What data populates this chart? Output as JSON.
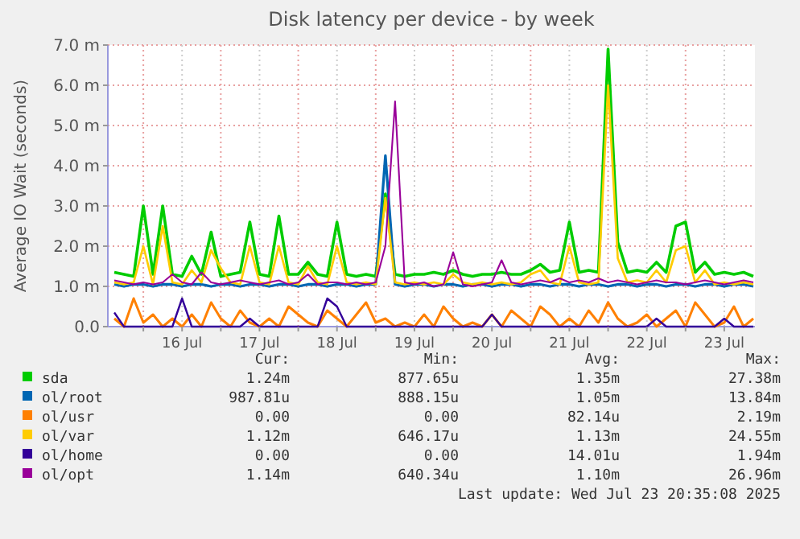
{
  "chart_data": {
    "type": "line",
    "title": "Disk latency per device - by week",
    "ylabel": "Average IO Wait (seconds)",
    "x": [
      "2025-07-15T15:00",
      "2025-07-15T18:00",
      "2025-07-15T21:00",
      "2025-07-16T00:00",
      "2025-07-16T03:00",
      "2025-07-16T06:00",
      "2025-07-16T09:00",
      "2025-07-16T12:00",
      "2025-07-16T15:00",
      "2025-07-16T18:00",
      "2025-07-16T21:00",
      "2025-07-17T00:00",
      "2025-07-17T03:00",
      "2025-07-17T06:00",
      "2025-07-17T09:00",
      "2025-07-17T12:00",
      "2025-07-17T15:00",
      "2025-07-17T18:00",
      "2025-07-17T21:00",
      "2025-07-18T00:00",
      "2025-07-18T03:00",
      "2025-07-18T06:00",
      "2025-07-18T09:00",
      "2025-07-18T12:00",
      "2025-07-18T15:00",
      "2025-07-18T18:00",
      "2025-07-18T21:00",
      "2025-07-19T00:00",
      "2025-07-19T03:00",
      "2025-07-19T06:00",
      "2025-07-19T09:00",
      "2025-07-19T12:00",
      "2025-07-19T15:00",
      "2025-07-19T18:00",
      "2025-07-19T21:00",
      "2025-07-20T00:00",
      "2025-07-20T03:00",
      "2025-07-20T06:00",
      "2025-07-20T09:00",
      "2025-07-20T12:00",
      "2025-07-20T15:00",
      "2025-07-20T18:00",
      "2025-07-20T21:00",
      "2025-07-21T00:00",
      "2025-07-21T03:00",
      "2025-07-21T06:00",
      "2025-07-21T09:00",
      "2025-07-21T12:00",
      "2025-07-21T15:00",
      "2025-07-21T18:00",
      "2025-07-21T21:00",
      "2025-07-22T00:00",
      "2025-07-22T03:00",
      "2025-07-22T06:00",
      "2025-07-22T09:00",
      "2025-07-22T12:00",
      "2025-07-22T15:00",
      "2025-07-22T18:00",
      "2025-07-22T21:00",
      "2025-07-23T00:00",
      "2025-07-23T03:00",
      "2025-07-23T06:00",
      "2025-07-23T09:00",
      "2025-07-23T12:00",
      "2025-07-23T15:00",
      "2025-07-23T18:00",
      "2025-07-23T21:00"
    ],
    "series": [
      {
        "name": "sda",
        "color": "#00cc00",
        "values": [
          1.35,
          1.3,
          1.25,
          3.0,
          1.3,
          3.0,
          1.3,
          1.25,
          1.75,
          1.3,
          2.35,
          1.25,
          1.3,
          1.35,
          2.6,
          1.3,
          1.25,
          2.75,
          1.3,
          1.3,
          1.6,
          1.3,
          1.25,
          2.6,
          1.3,
          1.25,
          1.3,
          1.25,
          3.3,
          1.3,
          1.25,
          1.3,
          1.3,
          1.35,
          1.3,
          1.4,
          1.3,
          1.25,
          1.3,
          1.3,
          1.35,
          1.3,
          1.3,
          1.4,
          1.55,
          1.35,
          1.4,
          2.6,
          1.35,
          1.4,
          1.35,
          6.9,
          2.1,
          1.35,
          1.4,
          1.35,
          1.6,
          1.35,
          2.5,
          2.6,
          1.35,
          1.6,
          1.3,
          1.35,
          1.3,
          1.35,
          1.25
        ]
      },
      {
        "name": "ol/root",
        "color": "#0066b3",
        "values": [
          1.05,
          1.0,
          1.05,
          1.05,
          1.0,
          1.05,
          1.05,
          1.0,
          1.05,
          1.05,
          1.0,
          1.05,
          1.05,
          1.0,
          1.05,
          1.05,
          1.0,
          1.05,
          1.05,
          1.0,
          1.05,
          1.05,
          1.0,
          1.05,
          1.05,
          1.0,
          1.05,
          1.05,
          4.25,
          1.05,
          1.0,
          1.05,
          1.05,
          1.0,
          1.05,
          1.05,
          1.0,
          1.05,
          1.05,
          1.0,
          1.05,
          1.05,
          1.0,
          1.05,
          1.05,
          1.0,
          1.05,
          1.05,
          1.0,
          1.05,
          1.05,
          1.0,
          1.05,
          1.05,
          1.0,
          1.05,
          1.05,
          1.0,
          1.05,
          1.05,
          1.0,
          1.05,
          1.05,
          1.0,
          1.05,
          1.05,
          1.0
        ]
      },
      {
        "name": "ol/usr",
        "color": "#ff8000",
        "values": [
          0.2,
          0.0,
          0.7,
          0.1,
          0.3,
          0.0,
          0.2,
          0.0,
          0.3,
          0.0,
          0.6,
          0.2,
          0.0,
          0.4,
          0.1,
          0.0,
          0.2,
          0.0,
          0.5,
          0.3,
          0.1,
          0.0,
          0.4,
          0.2,
          0.0,
          0.3,
          0.6,
          0.1,
          0.2,
          0.0,
          0.1,
          0.0,
          0.3,
          0.0,
          0.5,
          0.2,
          0.0,
          0.1,
          0.0,
          0.3,
          0.0,
          0.4,
          0.2,
          0.0,
          0.5,
          0.3,
          0.0,
          0.2,
          0.0,
          0.4,
          0.1,
          0.6,
          0.2,
          0.0,
          0.1,
          0.3,
          0.0,
          0.2,
          0.4,
          0.0,
          0.6,
          0.3,
          0.0,
          0.1,
          0.5,
          0.0,
          0.2
        ]
      },
      {
        "name": "ol/var",
        "color": "#ffcc00",
        "values": [
          1.1,
          1.05,
          1.1,
          2.0,
          1.05,
          2.5,
          1.1,
          1.05,
          1.4,
          1.1,
          1.9,
          1.45,
          1.1,
          1.05,
          2.0,
          1.1,
          1.05,
          2.0,
          1.1,
          1.05,
          1.5,
          1.1,
          1.05,
          2.0,
          1.1,
          1.05,
          1.1,
          1.05,
          3.2,
          1.1,
          1.05,
          1.1,
          1.05,
          1.1,
          1.05,
          1.3,
          1.1,
          1.05,
          1.1,
          1.05,
          1.1,
          1.05,
          1.1,
          1.3,
          1.4,
          1.1,
          1.05,
          2.0,
          1.1,
          1.05,
          1.1,
          6.0,
          1.7,
          1.1,
          1.15,
          1.1,
          1.4,
          1.1,
          1.9,
          2.0,
          1.1,
          1.4,
          1.05,
          1.1,
          1.05,
          1.1,
          1.05
        ]
      },
      {
        "name": "ol/home",
        "color": "#330099",
        "values": [
          0.35,
          0.0,
          0.0,
          0.0,
          0.0,
          0.0,
          0.0,
          0.7,
          0.0,
          0.0,
          0.0,
          0.0,
          0.0,
          0.0,
          0.2,
          0.0,
          0.0,
          0.0,
          0.0,
          0.0,
          0.0,
          0.0,
          0.7,
          0.5,
          0.0,
          0.0,
          0.0,
          0.0,
          0.0,
          0.0,
          0.0,
          0.0,
          0.0,
          0.0,
          0.0,
          0.0,
          0.0,
          0.0,
          0.0,
          0.3,
          0.0,
          0.0,
          0.0,
          0.0,
          0.0,
          0.0,
          0.0,
          0.0,
          0.0,
          0.0,
          0.0,
          0.0,
          0.0,
          0.0,
          0.0,
          0.0,
          0.2,
          0.0,
          0.0,
          0.0,
          0.0,
          0.0,
          0.0,
          0.2,
          0.0,
          0.0,
          0.0
        ]
      },
      {
        "name": "ol/opt",
        "color": "#990099",
        "values": [
          1.15,
          1.1,
          1.05,
          1.1,
          1.05,
          1.1,
          1.3,
          1.1,
          1.05,
          1.35,
          1.1,
          1.05,
          1.1,
          1.15,
          1.1,
          1.05,
          1.1,
          1.15,
          1.05,
          1.1,
          1.3,
          1.05,
          1.1,
          1.1,
          1.05,
          1.1,
          1.05,
          1.1,
          2.0,
          5.6,
          1.1,
          1.05,
          1.1,
          1.0,
          1.05,
          1.85,
          1.05,
          1.0,
          1.05,
          1.1,
          1.65,
          1.1,
          1.05,
          1.1,
          1.15,
          1.1,
          1.2,
          1.1,
          1.15,
          1.1,
          1.2,
          1.1,
          1.15,
          1.1,
          1.05,
          1.1,
          1.15,
          1.1,
          1.1,
          1.05,
          1.1,
          1.15,
          1.1,
          1.05,
          1.1,
          1.15,
          1.1
        ]
      }
    ],
    "xlim": [
      "2025-07-15T13:00",
      "2025-07-23T21:30"
    ],
    "xticks": [
      {
        "value": "2025-07-16T00:00",
        "label": null
      },
      {
        "value": "2025-07-16T12:00",
        "label": "16 Jul"
      },
      {
        "value": "2025-07-17T00:00",
        "label": null
      },
      {
        "value": "2025-07-17T12:00",
        "label": "17 Jul"
      },
      {
        "value": "2025-07-18T00:00",
        "label": null
      },
      {
        "value": "2025-07-18T12:00",
        "label": "18 Jul"
      },
      {
        "value": "2025-07-19T00:00",
        "label": null
      },
      {
        "value": "2025-07-19T12:00",
        "label": "19 Jul"
      },
      {
        "value": "2025-07-20T00:00",
        "label": null
      },
      {
        "value": "2025-07-20T12:00",
        "label": "20 Jul"
      },
      {
        "value": "2025-07-21T00:00",
        "label": null
      },
      {
        "value": "2025-07-21T12:00",
        "label": "21 Jul"
      },
      {
        "value": "2025-07-22T00:00",
        "label": null
      },
      {
        "value": "2025-07-22T12:00",
        "label": "22 Jul"
      },
      {
        "value": "2025-07-23T00:00",
        "label": null
      },
      {
        "value": "2025-07-23T12:00",
        "label": "23 Jul"
      }
    ],
    "ylim": [
      0,
      7
    ],
    "yticks": [
      {
        "value": 0,
        "label": "0.0"
      },
      {
        "value": 1,
        "label": "1.0 m"
      },
      {
        "value": 2,
        "label": "2.0 m"
      },
      {
        "value": 3,
        "label": "3.0 m"
      },
      {
        "value": 4,
        "label": "4.0 m"
      },
      {
        "value": 5,
        "label": "5.0 m"
      },
      {
        "value": 6,
        "label": "6.0 m"
      },
      {
        "value": 7,
        "label": "7.0 m"
      }
    ],
    "grid": true,
    "legend": "bottom",
    "marker": "none",
    "line_style": "solid",
    "annotations": [
      "Cur:",
      "Min:",
      "Avg:",
      "Max:",
      "1.24m",
      "877.65u",
      "1.35m",
      "27.38m",
      "987.81u",
      "888.15u",
      "1.05m",
      "13.84m",
      "0.00",
      "0.00",
      "82.14u",
      "2.19m",
      "1.12m",
      "646.17u",
      "1.13m",
      "24.55m",
      "0.00",
      "0.00",
      "14.01u",
      "1.94m",
      "1.14m",
      "640.34u",
      "1.10m",
      "26.96m",
      "Last update: Wed Jul 23 20:35:08 2025"
    ]
  }
}
